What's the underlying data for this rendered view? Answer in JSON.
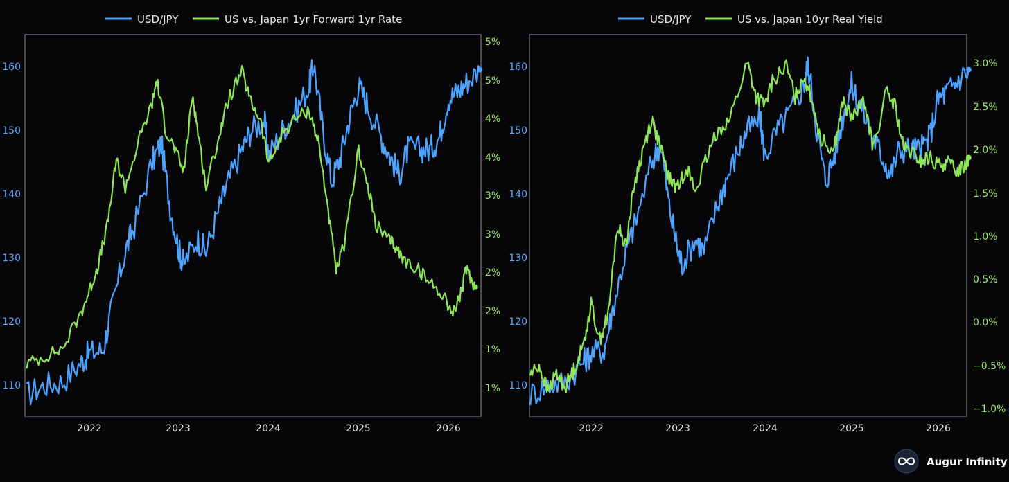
{
  "colors": {
    "usdjpy": "#4da3ff",
    "spread": "#8fe65a",
    "frame": "#8a8f98",
    "background": "#060608"
  },
  "brand": {
    "name": "Augur Infinity",
    "icon": "infinity-icon"
  },
  "chart_data": [
    {
      "type": "line",
      "legend": [
        "USD/JPY",
        "US vs. Japan 1yr Forward 1yr Rate"
      ],
      "x_ticks": [
        "2022",
        "2023",
        "2024",
        "2025",
        "2026"
      ],
      "x_range": [
        2021.3,
        2026.5
      ],
      "y_left": {
        "ticks": [
          "110",
          "120",
          "130",
          "140",
          "150",
          "160"
        ],
        "range": [
          104.6,
          166
        ]
      },
      "y_right": {
        "ticks": [
          "1%",
          "1%",
          "2%",
          "2%",
          "3%",
          "3%",
          "4%",
          "4%",
          "5%",
          "5%"
        ]
      },
      "series": [
        {
          "name": "USD/JPY",
          "axis": "left",
          "x": [
            2021.3,
            2021.5,
            2021.7,
            2021.9,
            2022.0,
            2022.15,
            2022.25,
            2022.4,
            2022.5,
            2022.7,
            2022.8,
            2022.9,
            2023.0,
            2023.05,
            2023.2,
            2023.3,
            2023.45,
            2023.55,
            2023.7,
            2023.8,
            2023.95,
            2024.0,
            2024.15,
            2024.3,
            2024.45,
            2024.5,
            2024.6,
            2024.7,
            2024.8,
            2024.9,
            2025.0,
            2025.1,
            2025.25,
            2025.35,
            2025.45,
            2025.55,
            2025.7,
            2025.8,
            2025.9,
            2026.0,
            2026.1,
            2026.2,
            2026.35
          ],
          "y": [
            108.5,
            110,
            110.5,
            113.5,
            115,
            115.5,
            122,
            131,
            135,
            145,
            148,
            138,
            131,
            129,
            133,
            131,
            138,
            142,
            147,
            150,
            151.5,
            146,
            150,
            153,
            157,
            160.5,
            150,
            142,
            146,
            152,
            157,
            154,
            149,
            146,
            143,
            147,
            147,
            147,
            149,
            155,
            156,
            157.5,
            159.5
          ]
        },
        {
          "name": "US vs. Japan 1yr Forward 1yr Rate",
          "axis": "right",
          "x": [
            2021.3,
            2021.5,
            2021.7,
            2021.9,
            2022.0,
            2022.1,
            2022.2,
            2022.3,
            2022.4,
            2022.55,
            2022.7,
            2022.75,
            2022.85,
            2022.95,
            2023.05,
            2023.15,
            2023.2,
            2023.3,
            2023.45,
            2023.55,
            2023.7,
            2023.8,
            2023.9,
            2024.0,
            2024.15,
            2024.3,
            2024.45,
            2024.55,
            2024.65,
            2024.75,
            2024.85,
            2025.0,
            2025.1,
            2025.2,
            2025.3,
            2025.4,
            2025.5,
            2025.65,
            2025.8,
            2025.95,
            2026.05,
            2026.15,
            2026.2,
            2026.3
          ],
          "y": [
            1.3,
            1.4,
            1.5,
            1.95,
            2.25,
            2.6,
            3.1,
            3.95,
            3.6,
            4.2,
            4.7,
            5.0,
            4.35,
            4.1,
            3.8,
            4.8,
            4.4,
            3.6,
            4.3,
            4.75,
            5.1,
            4.7,
            4.5,
            3.9,
            4.3,
            4.5,
            4.6,
            4.2,
            3.4,
            2.5,
            2.9,
            4.1,
            3.6,
            3.1,
            2.95,
            2.85,
            2.65,
            2.55,
            2.35,
            2.2,
            1.95,
            2.25,
            2.55,
            2.3
          ]
        }
      ]
    },
    {
      "type": "line",
      "legend": [
        "USD/JPY",
        "US vs. Japan 10yr Real Yield"
      ],
      "x_ticks": [
        "2022",
        "2023",
        "2024",
        "2025",
        "2026"
      ],
      "x_range": [
        2021.3,
        2026.5
      ],
      "y_left": {
        "ticks": [
          "110",
          "120",
          "130",
          "140",
          "150",
          "160"
        ],
        "range": [
          104.6,
          166
        ]
      },
      "y_right": {
        "ticks": [
          "−1.0%",
          "−0.5%",
          "0.0%",
          "0.5%",
          "1.0%",
          "1.5%",
          "2.0%",
          "2.5%",
          "3.0%"
        ],
        "range": [
          -1.1,
          3.3
        ]
      },
      "series": [
        {
          "name": "USD/JPY",
          "axis": "left",
          "x": [
            2021.3,
            2021.5,
            2021.7,
            2021.9,
            2022.0,
            2022.15,
            2022.25,
            2022.4,
            2022.5,
            2022.7,
            2022.8,
            2022.9,
            2023.0,
            2023.05,
            2023.2,
            2023.3,
            2023.45,
            2023.55,
            2023.7,
            2023.8,
            2023.95,
            2024.0,
            2024.15,
            2024.3,
            2024.45,
            2024.5,
            2024.6,
            2024.7,
            2024.8,
            2024.9,
            2025.0,
            2025.1,
            2025.25,
            2025.35,
            2025.45,
            2025.55,
            2025.7,
            2025.8,
            2025.9,
            2026.0,
            2026.1,
            2026.2,
            2026.35
          ],
          "y": [
            108.5,
            110,
            110.5,
            113.5,
            115,
            115.5,
            122,
            131,
            135,
            145,
            148,
            138,
            131,
            129,
            133,
            131,
            138,
            142,
            147,
            150,
            151.5,
            146,
            150,
            153,
            157,
            160.5,
            150,
            142,
            146,
            152,
            157,
            154,
            149,
            146,
            143,
            147,
            147,
            147,
            149,
            155,
            156,
            157.5,
            159.5
          ]
        },
        {
          "name": "US vs. Japan 10yr Real Yield",
          "axis": "right",
          "x": [
            2021.3,
            2021.4,
            2021.5,
            2021.6,
            2021.7,
            2021.8,
            2021.9,
            2022.0,
            2022.1,
            2022.2,
            2022.3,
            2022.4,
            2022.5,
            2022.6,
            2022.7,
            2022.8,
            2022.9,
            2023.0,
            2023.1,
            2023.2,
            2023.3,
            2023.45,
            2023.6,
            2023.8,
            2023.9,
            2024.0,
            2024.1,
            2024.25,
            2024.35,
            2024.45,
            2024.55,
            2024.65,
            2024.8,
            2024.9,
            2025.0,
            2025.15,
            2025.25,
            2025.4,
            2025.5,
            2025.6,
            2025.7,
            2025.8,
            2025.9,
            2026.0,
            2026.1,
            2026.2,
            2026.3,
            2026.35
          ],
          "y": [
            -0.6,
            -0.5,
            -0.8,
            -0.6,
            -0.75,
            -0.55,
            -0.3,
            0.2,
            -0.2,
            0.1,
            1.1,
            0.9,
            1.6,
            2.0,
            2.35,
            2.0,
            1.65,
            1.55,
            1.8,
            1.5,
            1.8,
            2.2,
            2.35,
            3.0,
            2.6,
            2.5,
            2.8,
            2.95,
            2.6,
            2.85,
            2.55,
            2.1,
            2.0,
            2.55,
            2.35,
            2.55,
            2.0,
            2.65,
            2.5,
            2.0,
            1.95,
            1.85,
            1.9,
            1.8,
            1.85,
            1.75,
            1.8,
            1.9
          ]
        }
      ]
    }
  ]
}
